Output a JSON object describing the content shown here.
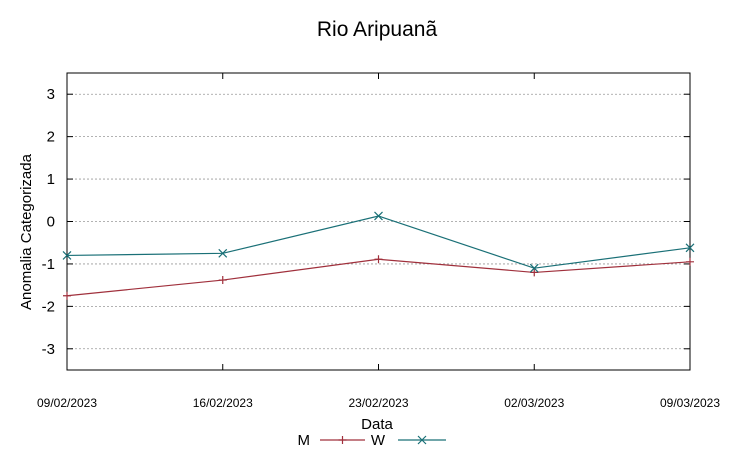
{
  "chart_data": {
    "type": "line",
    "title": "Rio Aripuanã",
    "xlabel": "Data",
    "ylabel": "Anomalia Categorizada",
    "categories": [
      "09/02/2023",
      "16/02/2023",
      "23/02/2023",
      "02/03/2023",
      "09/03/2023"
    ],
    "yticks": [
      "3",
      "2",
      "1",
      "0",
      "-1",
      "-2",
      "-3"
    ],
    "ylim": [
      -3.5,
      3.5
    ],
    "grid": true,
    "legend_position": "bottom",
    "series": [
      {
        "name": "M",
        "marker": "plus",
        "color": "#a0303c",
        "values": [
          -1.75,
          -1.38,
          -0.89,
          -1.2,
          -0.95
        ]
      },
      {
        "name": "W",
        "marker": "x",
        "color": "#1a7077",
        "values": [
          -0.8,
          -0.75,
          0.13,
          -1.1,
          -0.62
        ]
      }
    ]
  }
}
